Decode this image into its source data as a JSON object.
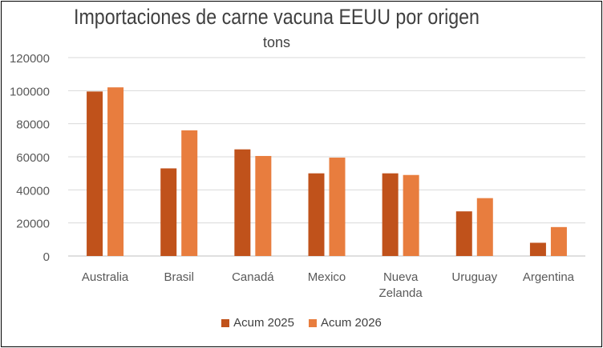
{
  "chart_data": {
    "type": "bar",
    "title": "Importaciones de carne vacuna EEUU por origen",
    "subtitle": "tons",
    "categories": [
      "Australia",
      "Brasil",
      "Canadá",
      "Mexico",
      "Nueva Zelanda",
      "Uruguay",
      "Argentina"
    ],
    "category_lines": [
      [
        "Australia"
      ],
      [
        "Brasil"
      ],
      [
        "Canadá"
      ],
      [
        "Mexico"
      ],
      [
        "Nueva",
        "Zelanda"
      ],
      [
        "Uruguay"
      ],
      [
        "Argentina"
      ]
    ],
    "series": [
      {
        "name": "Acum 2025",
        "color": "#c0521b",
        "values": [
          99500,
          53000,
          64500,
          50000,
          50000,
          27000,
          8000
        ]
      },
      {
        "name": "Acum 2026",
        "color": "#e87d3e",
        "values": [
          102000,
          76000,
          60500,
          59500,
          49000,
          35000,
          17500
        ]
      }
    ],
    "yticks": [
      "0",
      "20000",
      "40000",
      "60000",
      "80000",
      "100000",
      "120000"
    ],
    "ylim": [
      0,
      120000
    ],
    "grid": true,
    "legend": "bottom"
  }
}
